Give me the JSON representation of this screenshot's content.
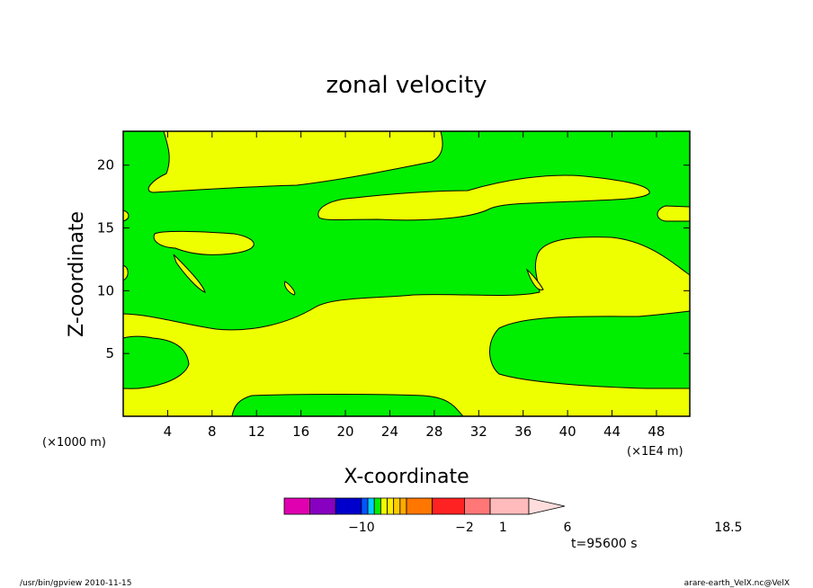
{
  "chart_data": {
    "type": "contour",
    "title": "zonal velocity",
    "xlabel": "X-coordinate",
    "ylabel": "Z-coordinate",
    "x_scale_note": "(×1E4 m)",
    "y_scale_note": "(×1000 m)",
    "x_ticks": [
      4,
      8,
      12,
      16,
      20,
      24,
      28,
      32,
      36,
      40,
      44,
      48
    ],
    "y_ticks": [
      5,
      10,
      15,
      20
    ],
    "xlim": [
      0,
      51
    ],
    "ylim": [
      0,
      22.7
    ],
    "fill_colors": {
      "background": "#00ee00",
      "positive": "#eeff00"
    },
    "colorbar": {
      "labels": [
        {
          "text": "−10",
          "position": -10
        },
        {
          "text": "−2",
          "position": -2
        },
        {
          "text": "1",
          "position": 1
        },
        {
          "text": "6",
          "position": 6
        },
        {
          "text": "18.5",
          "position": 18.5
        }
      ],
      "segments": [
        {
          "color": "#e000b0",
          "span": 2
        },
        {
          "color": "#8800c0",
          "span": 2
        },
        {
          "color": "#0000cc",
          "span": 2
        },
        {
          "color": "#0055ff",
          "span": 0.5
        },
        {
          "color": "#00ccff",
          "span": 0.5
        },
        {
          "color": "#00ee00",
          "span": 0.5
        },
        {
          "color": "#eeff00",
          "span": 0.5
        },
        {
          "color": "#ffee00",
          "span": 0.5
        },
        {
          "color": "#ffcc00",
          "span": 0.5
        },
        {
          "color": "#ffaa00",
          "span": 0.5
        },
        {
          "color": "#ff7700",
          "span": 2
        },
        {
          "color": "#ff2222",
          "span": 2.5
        },
        {
          "color": "#ff7777",
          "span": 2
        },
        {
          "color": "#ffbbbb",
          "span": 3
        }
      ],
      "arrow_color": "#ffdddd"
    },
    "time_label": "t=95600 s"
  },
  "footer": {
    "left": "/usr/bin/gpview   2010-11-15",
    "right": "arare-earth_VelX.nc@VelX"
  }
}
